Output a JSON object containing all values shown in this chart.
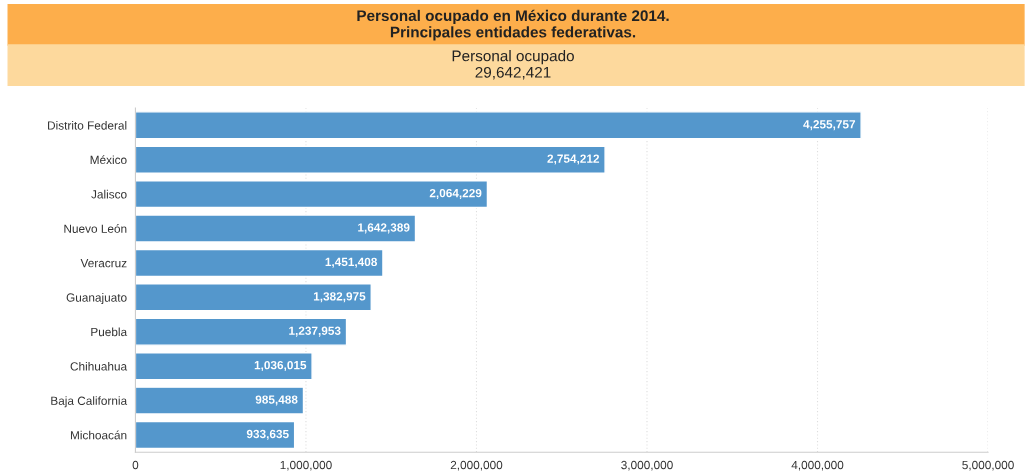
{
  "chart_data": {
    "type": "bar",
    "orientation": "horizontal",
    "title": "Personal ocupado en México durante 2014.\nPrincipales entidades federativas.",
    "subtitle": "Personal ocupado\n29,642,421",
    "categories": [
      "Distrito Federal",
      "México",
      "Jalisco",
      "Nuevo León",
      "Veracruz",
      "Guanajuato",
      "Puebla",
      "Chihuahua",
      "Baja California",
      "Michoacán"
    ],
    "values": [
      4255757,
      2754212,
      2064229,
      1642389,
      1451408,
      1382975,
      1237953,
      1036015,
      985488,
      933635
    ],
    "color": "#5497cc",
    "xlim": [
      0,
      5000000
    ],
    "xticks": [
      0,
      {
        "value": 1000000,
        "label": "1,000,000"
      },
      {
        "value": 2000000,
        "label": "2,000,000"
      },
      {
        "value": 3000000,
        "label": "3,000,000"
      },
      {
        "value": 4000000,
        "label": "4,000,000"
      },
      {
        "value": 5000000,
        "label": "5,000,000"
      }
    ],
    "grid": "x",
    "value_labels": [
      "4,255,757",
      "2,754,212",
      "2,064,229",
      "1,642,389",
      "1,451,408",
      "1,382,975",
      "1,237,953",
      "1,036,015",
      "985,488",
      "933,635"
    ],
    "legend": false
  }
}
